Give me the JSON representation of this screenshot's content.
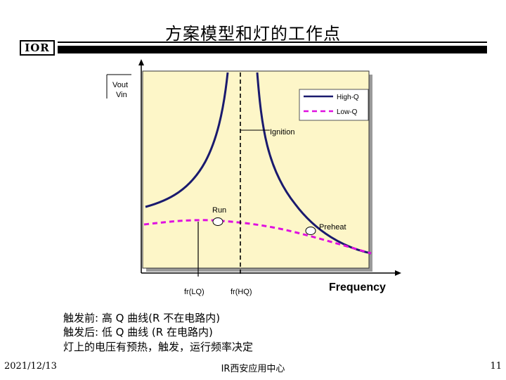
{
  "slide": {
    "title": "方案模型和灯的工作点",
    "logo_text": "IOR"
  },
  "chart_data": {
    "type": "line",
    "y_axis_label": [
      "Vout",
      "Vin"
    ],
    "x_axis_label": "Frequency",
    "legend": [
      {
        "name": "High-Q",
        "color": "#1a1a6e",
        "style": "solid"
      },
      {
        "name": "Low-Q",
        "color": "#e010e0",
        "style": "dashed"
      }
    ],
    "legend_placement": "top-right",
    "annotations": [
      "Ignition",
      "Run",
      "Preheat"
    ],
    "x_tick_labels": [
      "fr(LQ)",
      "fr(HQ)"
    ],
    "plot_background": "#fdf6c8",
    "high_q_color": "#1a1a6e",
    "low_q_color": "#e010e0"
  },
  "bullets": [
    "触发前: 高 Q 曲线(R 不在电路内)",
    "触发后: 低 Q 曲线 (R 在电路内)",
    "灯上的电压有预热，触发，运行频率决定"
  ],
  "footer": {
    "date": "2021/12/13",
    "center": "IR西安应用中心",
    "page": "11"
  }
}
